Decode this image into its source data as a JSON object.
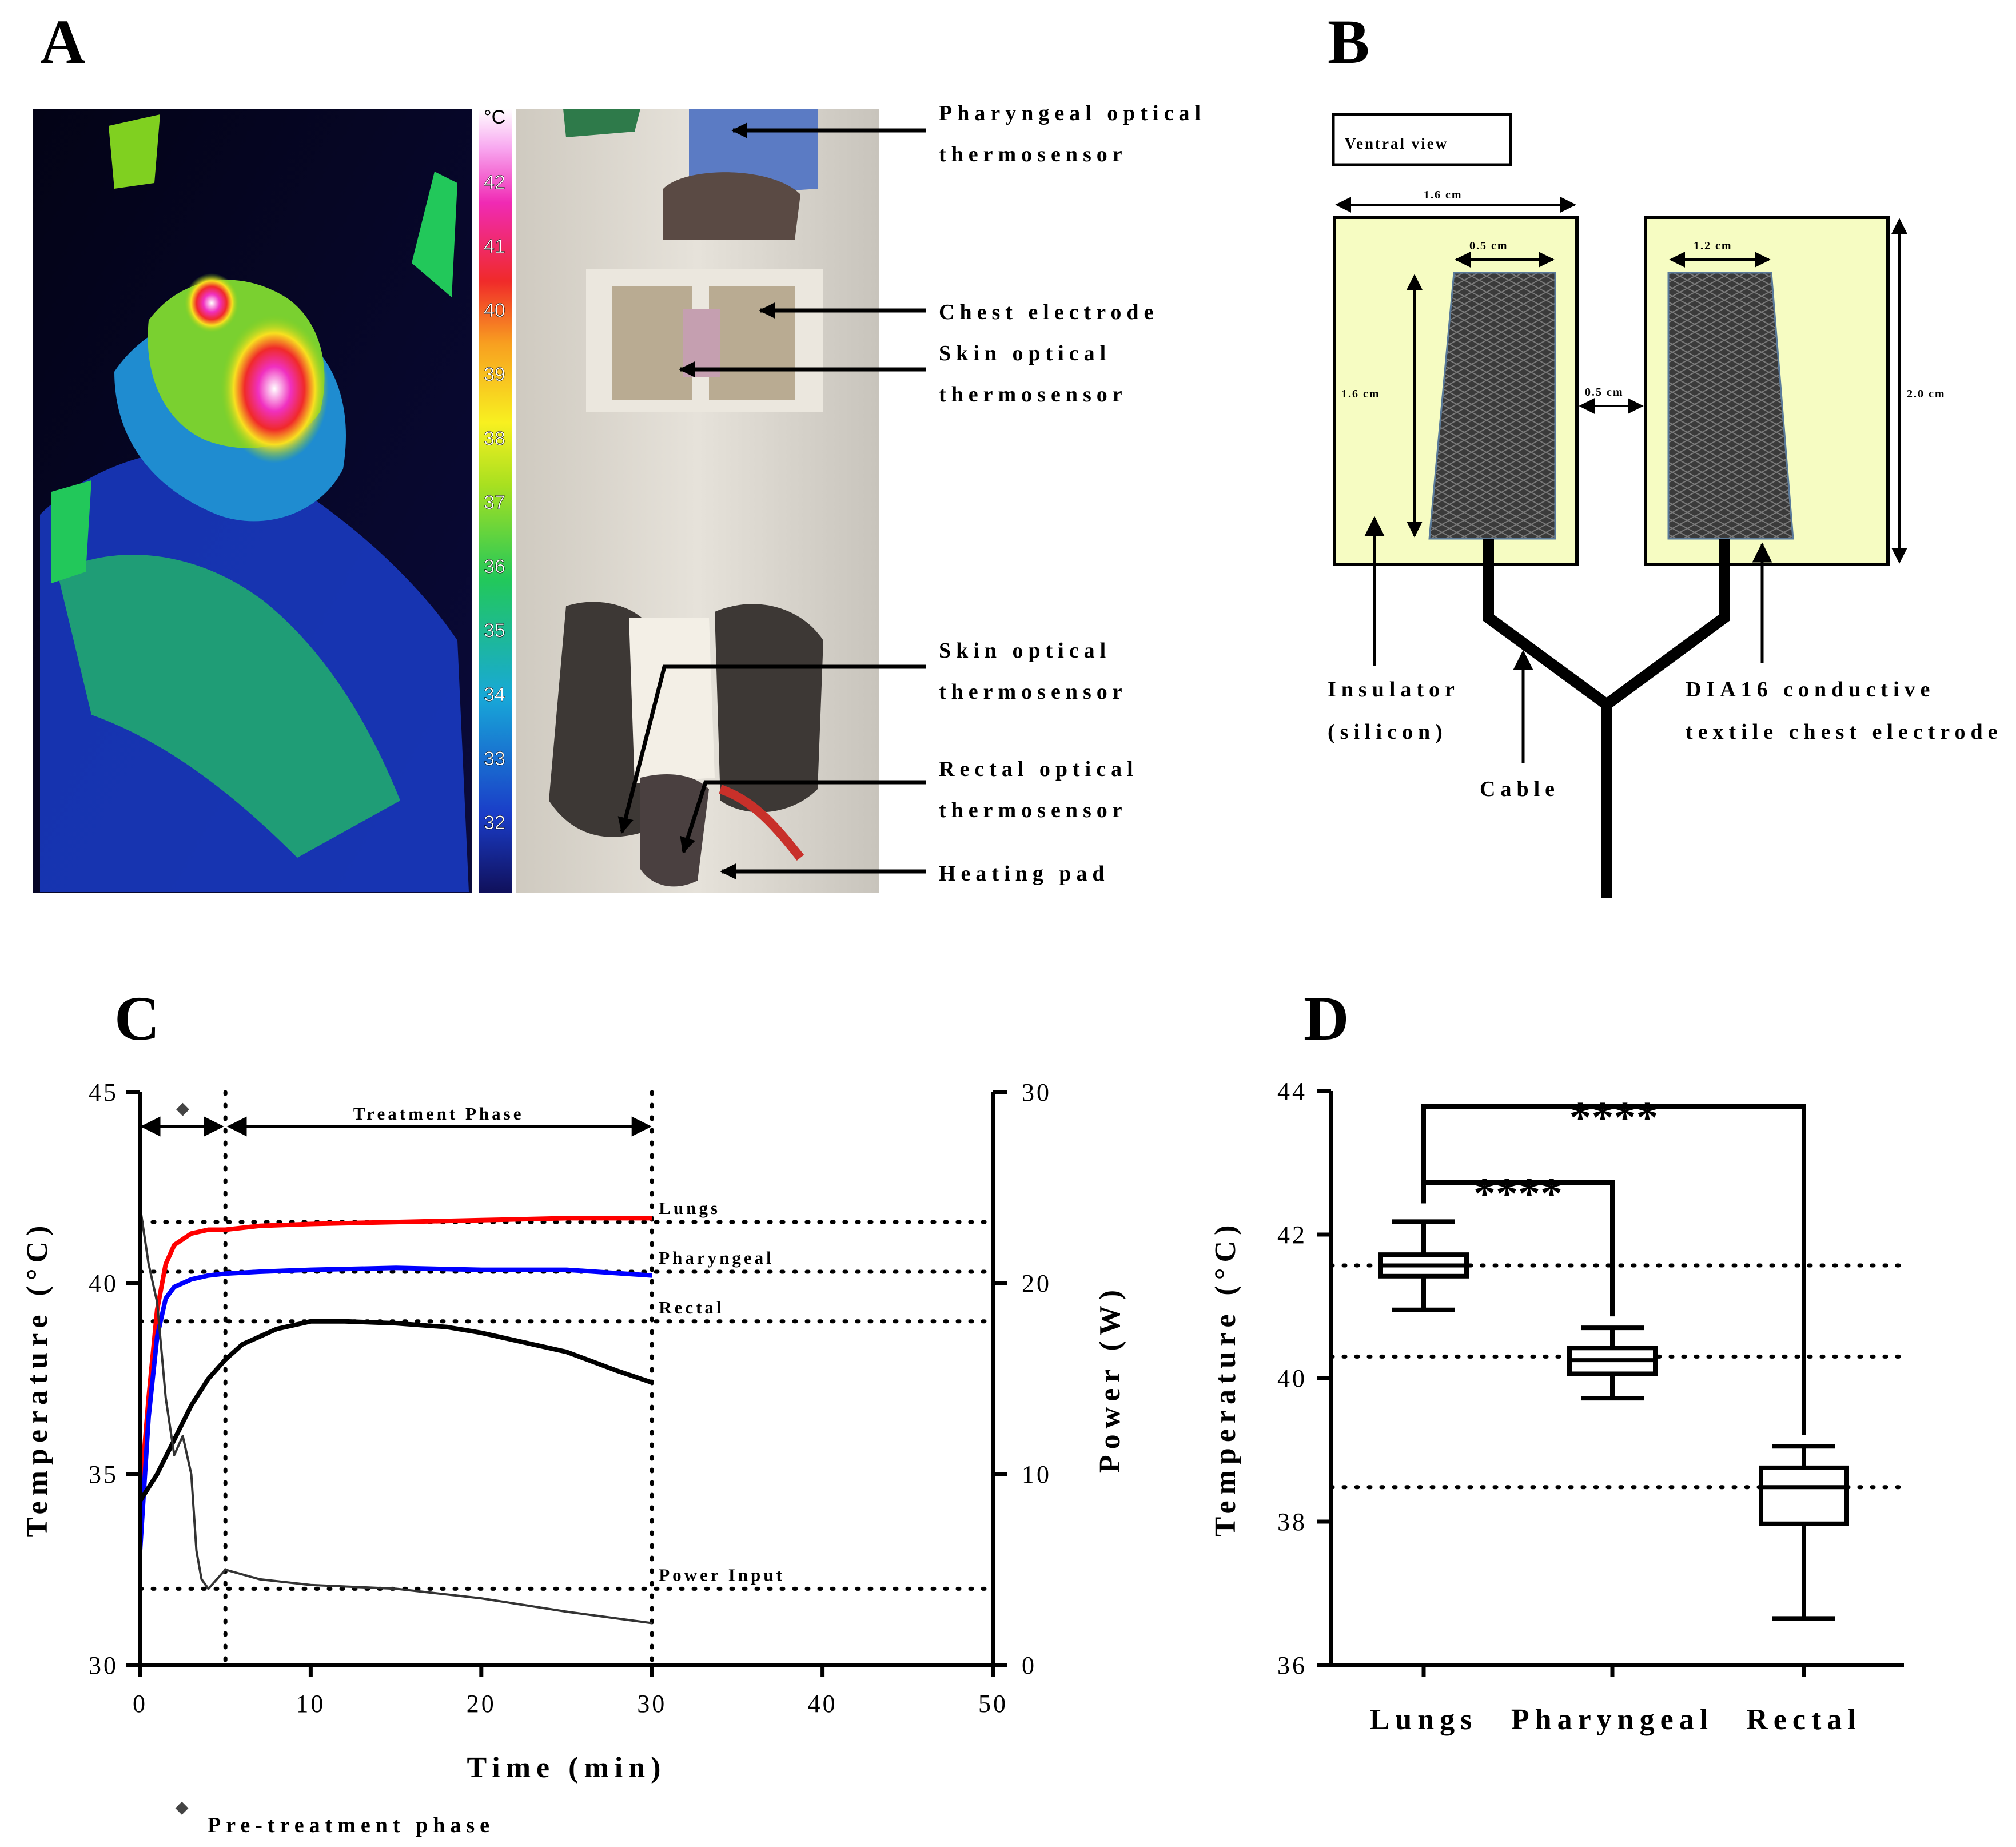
{
  "panels": {
    "A": {
      "letter": "A",
      "colorbar_unit": "°C",
      "colorbar_ticks": [
        "42",
        "41",
        "40",
        "39",
        "38",
        "37",
        "36",
        "35",
        "34",
        "33",
        "32"
      ],
      "annotations": [
        {
          "line1": "Pharyngeal optical",
          "line2": "thermosensor"
        },
        {
          "line1": "Chest electrode",
          "line2": ""
        },
        {
          "line1": "Skin optical",
          "line2": "thermosensor"
        },
        {
          "line1": "Skin optical",
          "line2": "thermosensor"
        },
        {
          "line1": "Rectal optical",
          "line2": "thermosensor"
        },
        {
          "line1": "Heating pad",
          "line2": ""
        }
      ]
    },
    "B": {
      "letter": "B",
      "view_label": "Ventral view",
      "dim_width_outer": "1.6 cm",
      "dim_top_left": "0.5 cm",
      "dim_top_right": "1.2 cm",
      "dim_height_left": "1.6 cm",
      "dim_gap": "0.5 cm",
      "dim_height_right": "2.0 cm",
      "insulator_line1": "Insulator",
      "insulator_line2": "(silicon)",
      "cable_label": "Cable",
      "electrode_line1": "DIA16 conductive",
      "electrode_line2": "textile chest electrode",
      "colors": {
        "insulator_fill": "#f6fcc2",
        "electrode_fill": "#3a3a3a"
      }
    },
    "C": {
      "letter": "C",
      "legend_marker": "◆",
      "legend_text": "Pre-treatment phase",
      "phase_label": "Treatment Phase"
    },
    "D": {
      "letter": "D",
      "sig_upper": "****",
      "sig_lower": "****"
    }
  },
  "chart_data": [
    {
      "type": "line",
      "panel": "C",
      "xlabel": "Time (min)",
      "ylabel": "Temperature (°C)",
      "ylabel_right": "Power (W)",
      "xlim": [
        0,
        50
      ],
      "ylim": [
        30,
        45
      ],
      "ylim_right": [
        0,
        30
      ],
      "x_ticks": [
        "0",
        "10",
        "20",
        "30",
        "40",
        "50"
      ],
      "y_ticks": [
        "30",
        "35",
        "40",
        "45"
      ],
      "y_ticks_right": [
        "0",
        "10",
        "20",
        "30"
      ],
      "phase_boundaries_min": [
        5,
        30
      ],
      "series": [
        {
          "name": "Lungs",
          "axis": "left",
          "color": "#ff0000",
          "x": [
            0,
            0.5,
            1,
            1.5,
            2,
            3,
            4,
            5,
            7,
            10,
            15,
            20,
            25,
            30
          ],
          "y": [
            34.3,
            37.0,
            39.3,
            40.5,
            41.0,
            41.3,
            41.4,
            41.4,
            41.5,
            41.55,
            41.6,
            41.65,
            41.7,
            41.7
          ],
          "reference": 41.6
        },
        {
          "name": "Pharyngeal",
          "axis": "left",
          "color": "#0000ff",
          "x": [
            0,
            0.5,
            1,
            1.5,
            2,
            3,
            4,
            5,
            7,
            10,
            15,
            20,
            25,
            30
          ],
          "y": [
            33.0,
            36.5,
            38.6,
            39.6,
            39.9,
            40.1,
            40.2,
            40.25,
            40.3,
            40.35,
            40.4,
            40.35,
            40.35,
            40.2
          ],
          "reference": 40.3
        },
        {
          "name": "Rectal",
          "axis": "left",
          "color": "#000000",
          "x": [
            0,
            1,
            2,
            3,
            4,
            5,
            6,
            8,
            10,
            12,
            15,
            18,
            20,
            22,
            25,
            28,
            30
          ],
          "y": [
            34.3,
            35.0,
            35.9,
            36.8,
            37.5,
            38.0,
            38.4,
            38.8,
            39.0,
            39.0,
            38.95,
            38.85,
            38.7,
            38.5,
            38.2,
            37.7,
            37.4
          ],
          "reference": 39.0
        },
        {
          "name": "Power Input",
          "axis": "right",
          "color": "#333333",
          "x": [
            0,
            0.5,
            1,
            1.5,
            2,
            2.5,
            3,
            3.3,
            3.6,
            4,
            5,
            7,
            10,
            15,
            20,
            25,
            30
          ],
          "y": [
            24,
            21,
            19,
            14,
            11,
            12,
            10,
            6,
            4.5,
            4.0,
            5.0,
            4.5,
            4.2,
            4.0,
            3.5,
            2.8,
            2.2
          ],
          "reference": 4.0
        }
      ]
    },
    {
      "type": "box",
      "panel": "D",
      "ylabel": "Temperature (°C)",
      "ylim": [
        36,
        44
      ],
      "y_ticks": [
        "36",
        "38",
        "40",
        "42",
        "44"
      ],
      "categories": [
        "Lungs",
        "Pharyngeal",
        "Rectal"
      ],
      "boxes": [
        {
          "category": "Lungs",
          "min": 40.95,
          "q1": 41.42,
          "median": 41.57,
          "q3": 41.72,
          "max": 42.18
        },
        {
          "category": "Pharyngeal",
          "min": 39.72,
          "q1": 40.06,
          "median": 40.25,
          "q3": 40.42,
          "max": 40.7
        },
        {
          "category": "Rectal",
          "min": 36.65,
          "q1": 37.97,
          "median": 38.48,
          "q3": 38.75,
          "max": 39.05
        }
      ],
      "reference_lines": [
        41.57,
        40.3,
        38.48
      ]
    }
  ]
}
